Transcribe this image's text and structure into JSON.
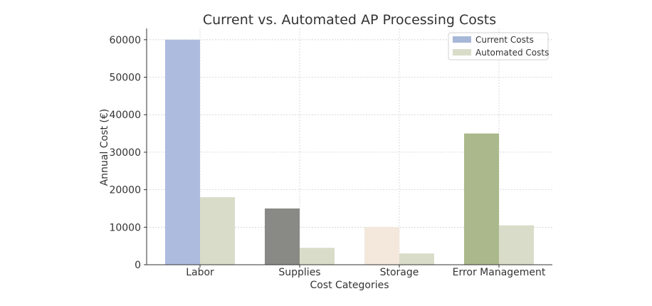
{
  "chart_data": {
    "type": "bar",
    "title": "Current vs. Automated AP Processing Costs",
    "xlabel": "Cost Categories",
    "ylabel": "Annual Cost (€)",
    "categories": [
      "Labor",
      "Supplies",
      "Storage",
      "Error Management"
    ],
    "ylim": [
      0,
      63000
    ],
    "yticks": [
      0,
      10000,
      20000,
      30000,
      40000,
      50000,
      60000
    ],
    "ytick_labels": [
      "0",
      "10000",
      "20000",
      "30000",
      "40000",
      "50000",
      "60000"
    ],
    "grid": true,
    "legend_position": "top-right",
    "series": [
      {
        "name": "Current Costs",
        "values": [
          60000,
          15000,
          10000,
          35000
        ],
        "legend_color": "#a7b7d8",
        "bar_colors": [
          "#adbbdf",
          "#898985",
          "#f4e7dc",
          "#abb88b"
        ]
      },
      {
        "name": "Automated Costs",
        "values": [
          18000,
          4500,
          3000,
          10500
        ],
        "legend_color": "#d9dcc8",
        "bar_colors": [
          "#d9dcc8",
          "#d9dcc8",
          "#d9dcc8",
          "#d9dcc8"
        ]
      }
    ]
  }
}
